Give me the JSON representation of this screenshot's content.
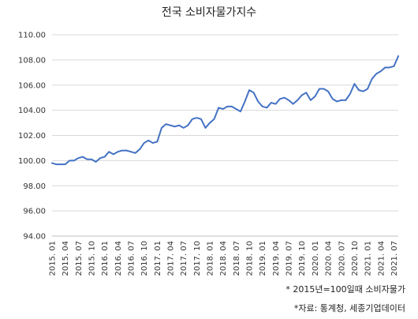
{
  "chart_data": {
    "type": "line",
    "title": "전국 소비자물가지수",
    "xlabel": "",
    "ylabel": "",
    "ylim": [
      94,
      110
    ],
    "yticks": [
      "94.00",
      "96.00",
      "98.00",
      "100.00",
      "102.00",
      "104.00",
      "106.00",
      "108.00",
      "110.00"
    ],
    "grid": true,
    "line_color": "#4472c4",
    "x_tick_labels": [
      "2015. 01",
      "2015. 04",
      "2015. 07",
      "2015. 10",
      "2016. 01",
      "2016. 04",
      "2016. 07",
      "2016. 10",
      "2017. 01",
      "2017. 04",
      "2017. 07",
      "2017. 10",
      "2018. 01",
      "2018. 04",
      "2018. 07",
      "2018. 10",
      "2019. 01",
      "2019. 04",
      "2019. 07",
      "2019. 10",
      "2020. 01",
      "2020. 04",
      "2020. 07",
      "2020. 10",
      "2021. 01",
      "2021. 04",
      "2021. 07"
    ],
    "x": [
      "2015. 01",
      "2015. 02",
      "2015. 03",
      "2015. 04",
      "2015. 05",
      "2015. 06",
      "2015. 07",
      "2015. 08",
      "2015. 09",
      "2015. 10",
      "2015. 11",
      "2015. 12",
      "2016. 01",
      "2016. 02",
      "2016. 03",
      "2016. 04",
      "2016. 05",
      "2016. 06",
      "2016. 07",
      "2016. 08",
      "2016. 09",
      "2016. 10",
      "2016. 11",
      "2016. 12",
      "2017. 01",
      "2017. 02",
      "2017. 03",
      "2017. 04",
      "2017. 05",
      "2017. 06",
      "2017. 07",
      "2017. 08",
      "2017. 09",
      "2017. 10",
      "2017. 11",
      "2017. 12",
      "2018. 01",
      "2018. 02",
      "2018. 03",
      "2018. 04",
      "2018. 05",
      "2018. 06",
      "2018. 07",
      "2018. 08",
      "2018. 09",
      "2018. 10",
      "2018. 11",
      "2018. 12",
      "2019. 01",
      "2019. 02",
      "2019. 03",
      "2019. 04",
      "2019. 05",
      "2019. 06",
      "2019. 07",
      "2019. 08",
      "2019. 09",
      "2019. 10",
      "2019. 11",
      "2019. 12",
      "2020. 01",
      "2020. 02",
      "2020. 03",
      "2020. 04",
      "2020. 05",
      "2020. 06",
      "2020. 07",
      "2020. 08",
      "2020. 09",
      "2020. 10",
      "2020. 11",
      "2020. 12",
      "2021. 01",
      "2021. 02",
      "2021. 03",
      "2021. 04",
      "2021. 05",
      "2021. 06",
      "2021. 07",
      "2021. 08"
    ],
    "series": [
      {
        "values": [
          99.8,
          99.7,
          99.7,
          99.7,
          100.0,
          100.0,
          100.2,
          100.3,
          100.1,
          100.1,
          99.9,
          100.2,
          100.3,
          100.7,
          100.5,
          100.7,
          100.8,
          100.8,
          100.7,
          100.6,
          100.9,
          101.4,
          101.6,
          101.4,
          101.5,
          102.6,
          102.9,
          102.8,
          102.7,
          102.8,
          102.6,
          102.8,
          103.3,
          103.4,
          103.3,
          102.6,
          103.0,
          103.3,
          104.2,
          104.1,
          104.3,
          104.3,
          104.1,
          103.9,
          104.7,
          105.6,
          105.4,
          104.7,
          104.3,
          104.2,
          104.6,
          104.5,
          104.9,
          105.0,
          104.8,
          104.5,
          104.8,
          105.2,
          105.4,
          104.8,
          105.1,
          105.7,
          105.7,
          105.5,
          104.9,
          104.7,
          104.8,
          104.8,
          105.3,
          106.1,
          105.6,
          105.5,
          105.7,
          106.5,
          106.9,
          107.1,
          107.4,
          107.4,
          107.5,
          108.3
        ]
      }
    ]
  },
  "notes": {
    "base": "* 2015년=100일때 소비자물가",
    "source": "*자료: 통계청, 세종기업데이터"
  }
}
